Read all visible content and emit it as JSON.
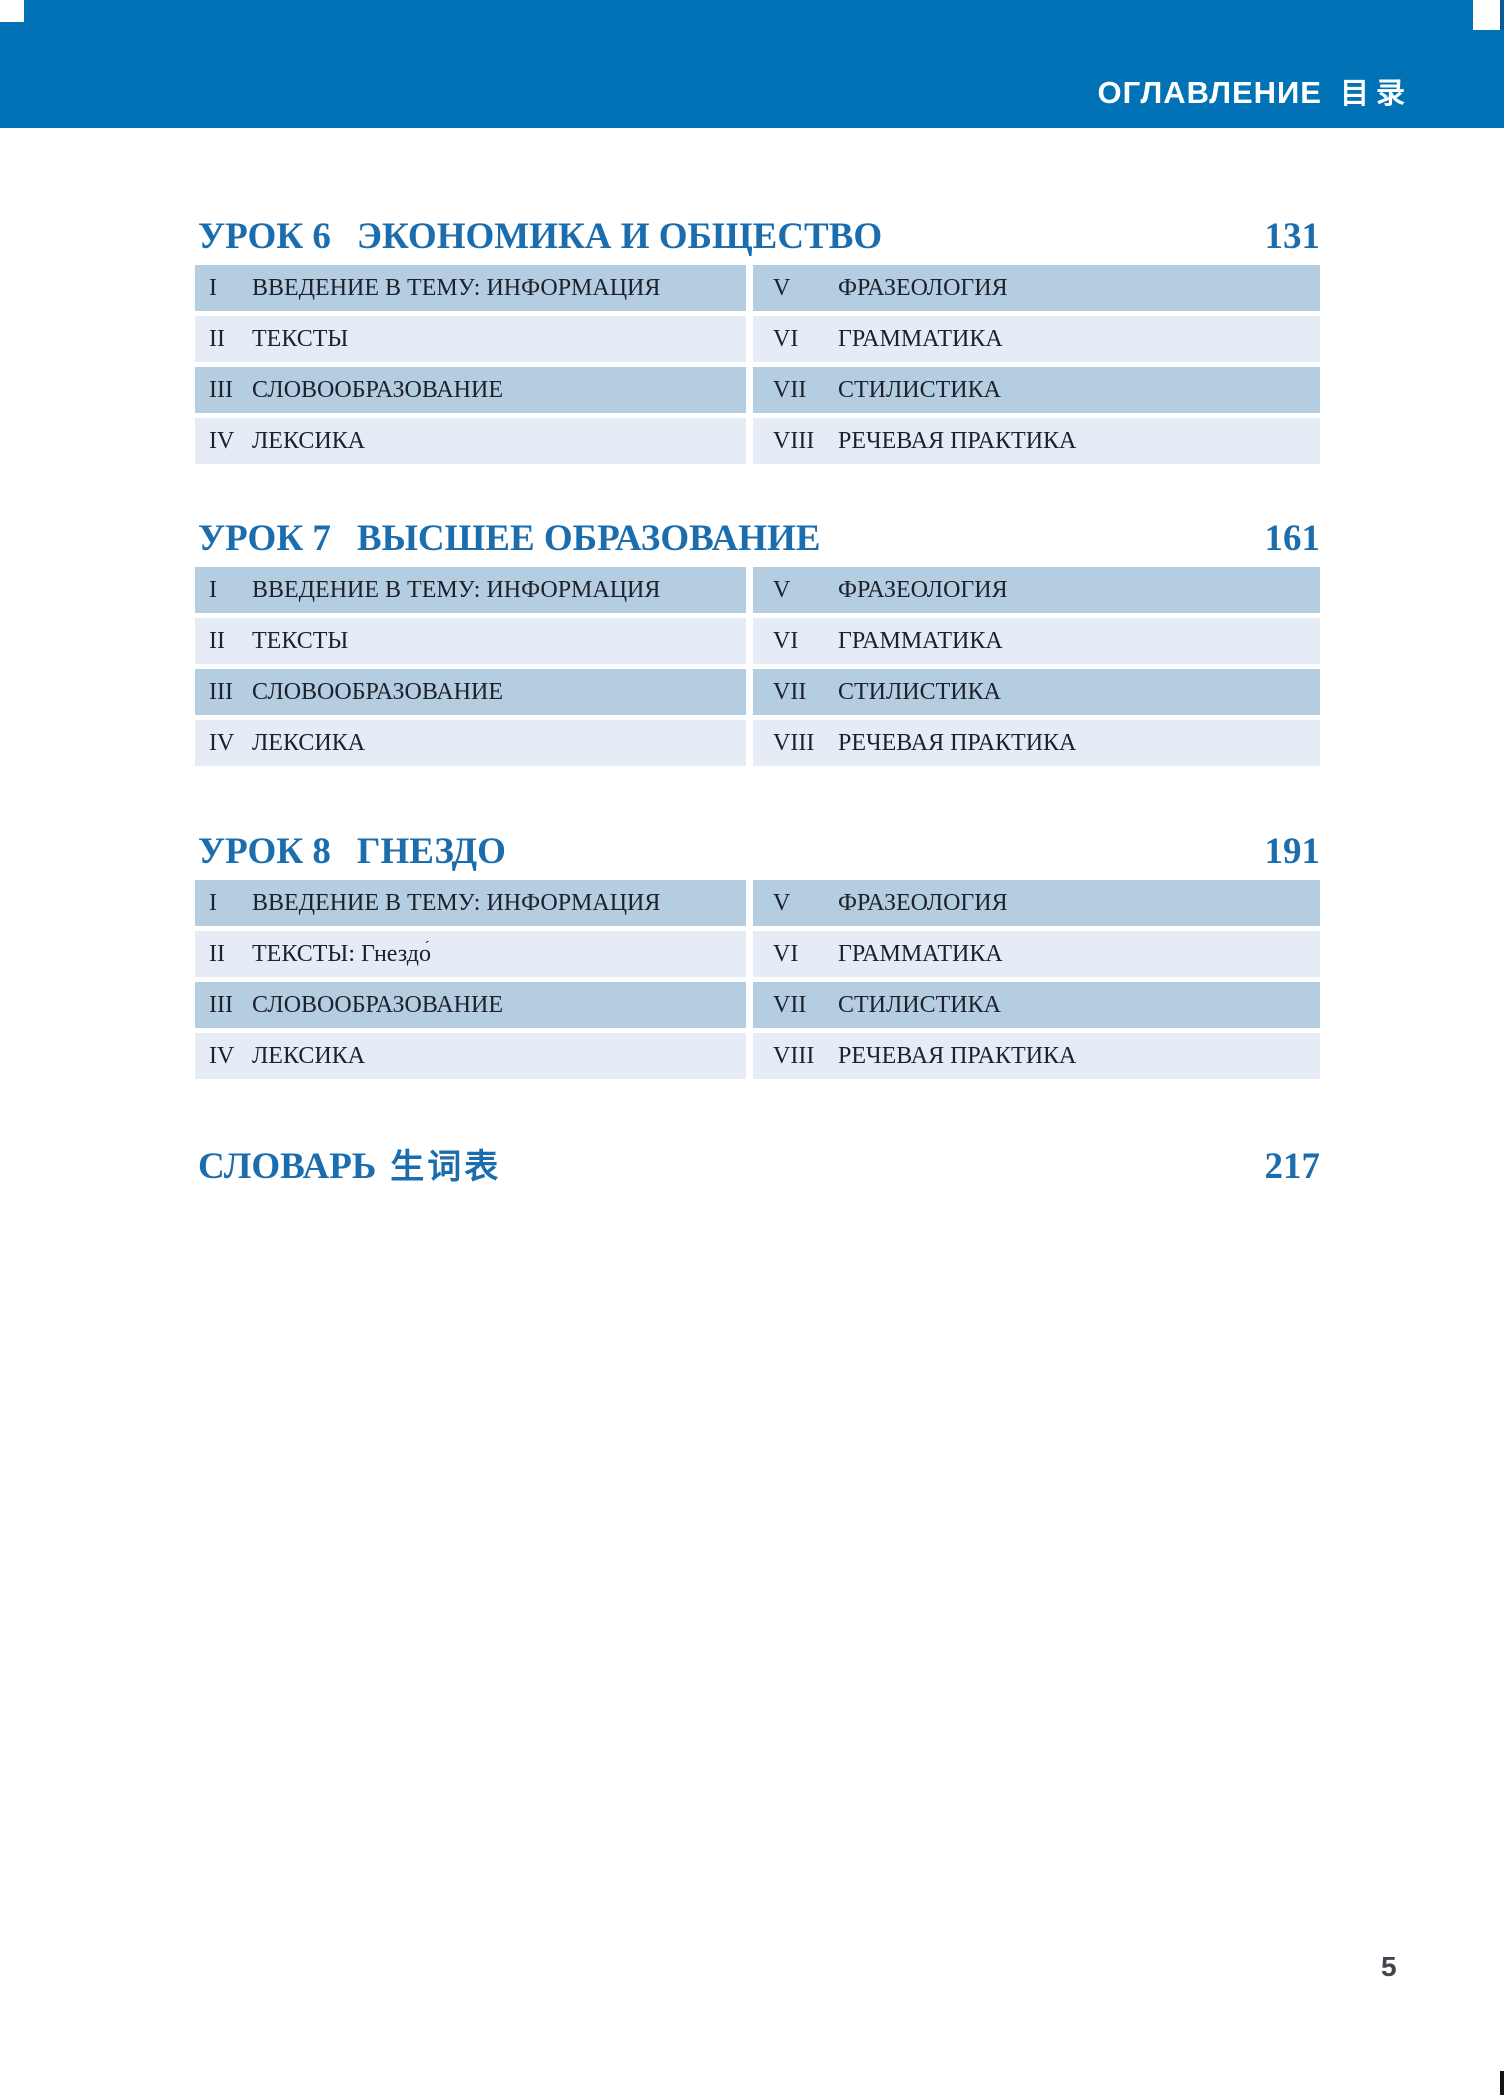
{
  "header": {
    "title_ru": "ОГЛАВЛЕНИЕ",
    "title_zh": "目录"
  },
  "lessons": [
    {
      "label": "УРОК 6",
      "title": "ЭКОНОМИКА И ОБЩЕСТВО",
      "page": "131",
      "left": [
        {
          "num": "I",
          "label": "ВВЕДЕНИЕ В ТЕМУ: ИНФОРМАЦИЯ"
        },
        {
          "num": "II",
          "label": "ТЕКСТЫ"
        },
        {
          "num": "III",
          "label": "СЛОВООБРАЗОВАНИЕ"
        },
        {
          "num": "IV",
          "label": "ЛЕКСИКА"
        }
      ],
      "right": [
        {
          "num": "V",
          "label": "ФРАЗЕОЛОГИЯ"
        },
        {
          "num": "VI",
          "label": "ГРАММАТИКА"
        },
        {
          "num": "VII",
          "label": "СТИЛИСТИКА"
        },
        {
          "num": "VIII",
          "label": "РЕЧЕВАЯ ПРАКТИКА"
        }
      ]
    },
    {
      "label": "УРОК 7",
      "title": "ВЫСШЕЕ ОБРАЗОВАНИЕ",
      "page": "161",
      "left": [
        {
          "num": "I",
          "label": "ВВЕДЕНИЕ В ТЕМУ: ИНФОРМАЦИЯ"
        },
        {
          "num": "II",
          "label": "ТЕКСТЫ"
        },
        {
          "num": "III",
          "label": "СЛОВООБРАЗОВАНИЕ"
        },
        {
          "num": "IV",
          "label": "ЛЕКСИКА"
        }
      ],
      "right": [
        {
          "num": "V",
          "label": "ФРАЗЕОЛОГИЯ"
        },
        {
          "num": "VI",
          "label": "ГРАММАТИКА"
        },
        {
          "num": "VII",
          "label": "СТИЛИСТИКА"
        },
        {
          "num": "VIII",
          "label": "РЕЧЕВАЯ ПРАКТИКА"
        }
      ]
    },
    {
      "label": "УРОК 8",
      "title": "ГНЕЗДО",
      "page": "191",
      "left": [
        {
          "num": "I",
          "label": "ВВЕДЕНИЕ В ТЕМУ: ИНФОРМАЦИЯ"
        },
        {
          "num": "II",
          "label": "ТЕКСТЫ: Гнездо́"
        },
        {
          "num": "III",
          "label": "СЛОВООБРАЗОВАНИЕ"
        },
        {
          "num": "IV",
          "label": "ЛЕКСИКА"
        }
      ],
      "right": [
        {
          "num": "V",
          "label": "ФРАЗЕОЛОГИЯ"
        },
        {
          "num": "VI",
          "label": "ГРАММАТИКА"
        },
        {
          "num": "VII",
          "label": "СТИЛИСТИКА"
        },
        {
          "num": "VIII",
          "label": "РЕЧЕВАЯ ПРАКТИКА"
        }
      ]
    }
  ],
  "glossary": {
    "label_ru": "СЛОВАРЬ",
    "label_zh": "生词表",
    "page": "217"
  },
  "footer": {
    "page_number": "5"
  },
  "colors": {
    "header_bar": "#0072b5",
    "heading_text": "#1b6dad",
    "row_dark": "#b4cde0",
    "row_light": "#e6ecf6",
    "row_text": "#1c222b",
    "footer_page": "#40464d"
  }
}
